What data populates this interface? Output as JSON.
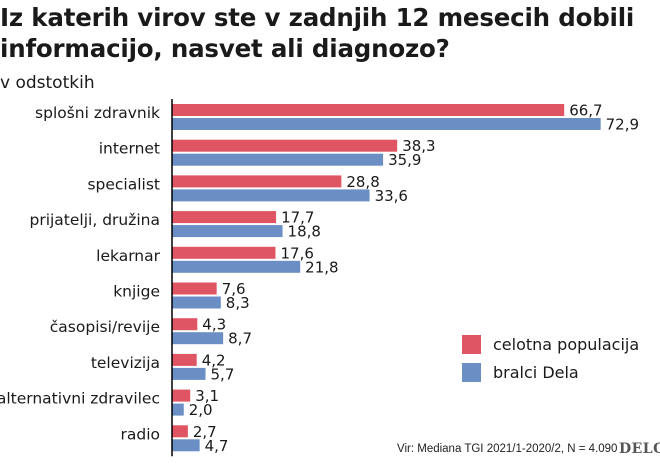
{
  "title": "Iz katerih virov ste v zadnjih 12 mesecih dobili informacijo, nasvet ali diagnozo?",
  "subtitle": "v odstotkih",
  "source": "Vir: Mediana TGI 2021/1-2020/2,  N = 4.090",
  "logo_text": "DELO",
  "colors": {
    "celotna": "#e05563",
    "bralci": "#6b8fc5",
    "axis": "#000000"
  },
  "chart_data": {
    "type": "bar",
    "orientation": "horizontal",
    "categories": [
      "splošni zdravnik",
      "internet",
      "specialist",
      "prijatelji, družina",
      "lekarnar",
      "knjige",
      "časopisi/revije",
      "televizija",
      "alternativni zdravilec",
      "radio"
    ],
    "series": [
      {
        "name": "celotna populacija",
        "values": [
          66.7,
          38.3,
          28.8,
          17.7,
          17.6,
          7.6,
          4.3,
          4.2,
          3.1,
          2.7
        ],
        "labels": [
          "66,7",
          "38,3",
          "28,8",
          "17,7",
          "17,6",
          "7,6",
          "4,3",
          "4,2",
          "3,1",
          "2,7"
        ]
      },
      {
        "name": "bralci Dela",
        "values": [
          72.9,
          35.9,
          33.6,
          18.8,
          21.8,
          8.3,
          8.7,
          5.7,
          2.0,
          4.7
        ],
        "labels": [
          "72,9",
          "35,9",
          "33,6",
          "18,8",
          "21,8",
          "8,3",
          "8,7",
          "5,7",
          "2,0",
          "4,7"
        ]
      }
    ],
    "xlim": [
      0,
      100
    ],
    "grid": false,
    "legend_position": "bottom-right"
  }
}
